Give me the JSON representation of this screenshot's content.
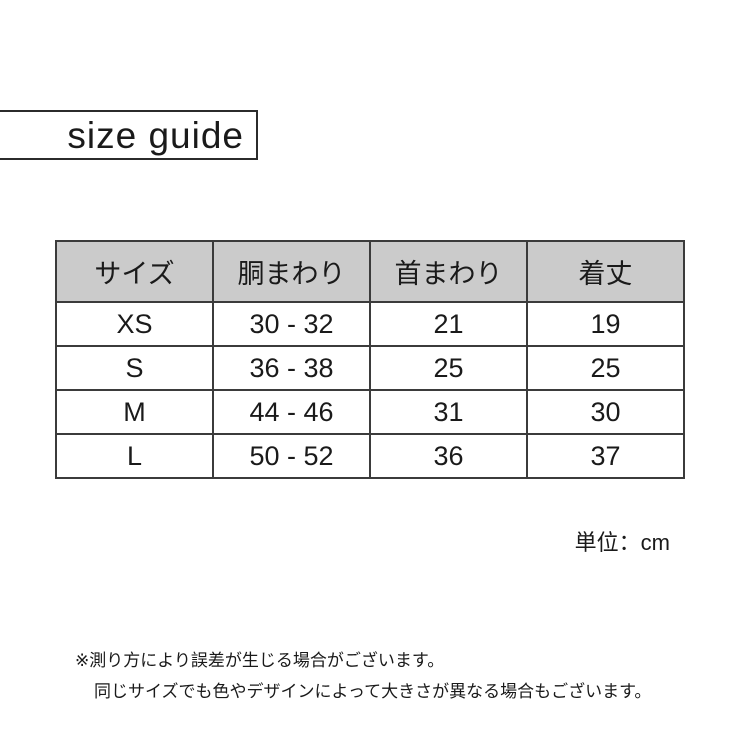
{
  "title": "size guide",
  "table": {
    "headers": [
      "サイズ",
      "胴まわり",
      "首まわり",
      "着丈"
    ],
    "rows": [
      {
        "size": "XS",
        "girth": "30 - 32",
        "neck": "21",
        "length": "19"
      },
      {
        "size": "S",
        "girth": "36 - 38",
        "neck": "25",
        "length": "25"
      },
      {
        "size": "M",
        "girth": "44 - 46",
        "neck": "31",
        "length": "30"
      },
      {
        "size": "L",
        "girth": "50 - 52",
        "neck": "36",
        "length": "37"
      }
    ]
  },
  "unit_label": "単位：cm",
  "notes": {
    "line1": "※測り方により誤差が生じる場合がございます。",
    "line2": "同じサイズでも色やデザインによって大きさが異なる場合もございます。"
  },
  "colors": {
    "header_bg": "#cbcbcb",
    "border": "#3b3b3b",
    "text": "#1a1a1a"
  }
}
